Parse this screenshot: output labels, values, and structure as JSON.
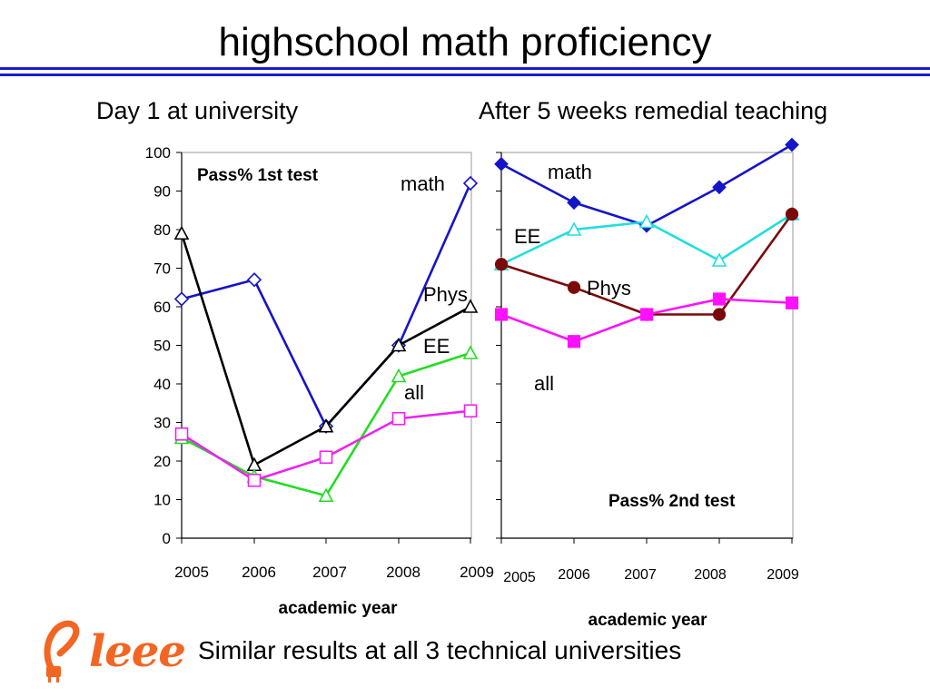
{
  "slide": {
    "title": "highschool math proficiency",
    "footer": "Similar results at all 3 technical universities",
    "logo_text": "leee",
    "colors": {
      "rule": "#1a1ad6",
      "logo": "#f26522"
    }
  },
  "chart_data": [
    {
      "type": "line",
      "subtitle": "Day 1 at university",
      "title": "Pass% 1st test",
      "xlabel": "academic year",
      "ylabel": "",
      "categories": [
        "2005",
        "2006",
        "2007",
        "2008",
        "2009"
      ],
      "ylim": [
        0,
        100
      ],
      "yticks": [
        "0",
        "10",
        "20",
        "30",
        "40",
        "50",
        "60",
        "70",
        "80",
        "90",
        "100"
      ],
      "series": [
        {
          "name": "math",
          "values": [
            62,
            67,
            29,
            50,
            92
          ],
          "color": "#1515c8",
          "marker": "diamond-open"
        },
        {
          "name": "Phys",
          "values": [
            79,
            19,
            29,
            50,
            60
          ],
          "color": "#000000",
          "marker": "triangle-open"
        },
        {
          "name": "EE",
          "values": [
            26,
            16,
            11,
            42,
            48
          ],
          "color": "#22dd22",
          "marker": "triangle-open"
        },
        {
          "name": "all",
          "values": [
            27,
            15,
            21,
            31,
            33
          ],
          "color": "#ee22ee",
          "marker": "square-open"
        }
      ]
    },
    {
      "type": "line",
      "subtitle": "After 5 weeks remedial teaching",
      "title": "Pass% 2nd test",
      "xlabel": "academic year",
      "ylabel": "",
      "categories": [
        "2005",
        "2006",
        "2007",
        "2008",
        "2009"
      ],
      "ylim": [
        0,
        100
      ],
      "series": [
        {
          "name": "math",
          "values": [
            97,
            87,
            81,
            91,
            102
          ],
          "color": "#1515c8",
          "marker": "diamond-filled"
        },
        {
          "name": "EE",
          "values": [
            71,
            80,
            82,
            72,
            84
          ],
          "color": "#22dddd",
          "marker": "triangle-open"
        },
        {
          "name": "Phys",
          "values": [
            71,
            65,
            58,
            58,
            84
          ],
          "color": "#7a0a0a",
          "marker": "circle-filled"
        },
        {
          "name": "all",
          "values": [
            58,
            51,
            58,
            62,
            61
          ],
          "color": "#ff11ff",
          "marker": "square-filled"
        }
      ]
    }
  ]
}
